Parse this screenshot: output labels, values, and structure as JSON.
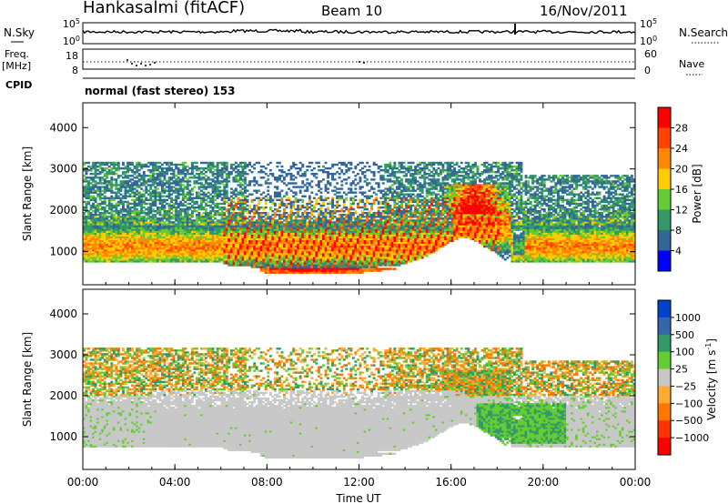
{
  "header": {
    "station": "Hankasalmi (fitACF)",
    "beam": "Beam 10",
    "date": "16/Nov/2011"
  },
  "noise_panel": {
    "left_label": "N.Sky",
    "right_label": "N.Search",
    "left_ticks": [
      {
        "base": "10",
        "exp": "5"
      },
      {
        "base": "10",
        "exp": "0"
      }
    ],
    "right_ticks": [
      {
        "base": "10",
        "exp": "5"
      },
      {
        "base": "10",
        "exp": "0"
      }
    ]
  },
  "freq_panel": {
    "left_label_line1": "Freq.",
    "left_label_line2": "[MHz]",
    "right_label": "Nave",
    "left_ticks": [
      "18",
      "8"
    ],
    "right_ticks": [
      "60",
      "0"
    ]
  },
  "cpid_panel": {
    "label": "CPID",
    "text": "normal (fast stereo) 153"
  },
  "chart_data": [
    {
      "type": "heatmap",
      "name": "power",
      "ylabel": "Slant Range [km]",
      "ylim": [
        200,
        4600
      ],
      "yticks": [
        1000,
        2000,
        3000,
        4000
      ],
      "xlim": [
        0,
        24
      ],
      "colorbar": {
        "label": "Power [dB]",
        "ticks": [
          "28",
          "24",
          "20",
          "16",
          "12",
          "8",
          "4"
        ],
        "colors": [
          "#ff0000",
          "#ff4400",
          "#ff8800",
          "#ffcc00",
          "#66cc33",
          "#339966",
          "#336699",
          "#0000ff"
        ]
      }
    },
    {
      "type": "heatmap",
      "name": "velocity",
      "ylabel": "Slant Range [km]",
      "ylim": [
        200,
        4600
      ],
      "yticks": [
        1000,
        2000,
        3000,
        4000
      ],
      "xlim": [
        0,
        24
      ],
      "xlabel": "Time UT",
      "xticks": [
        "00:00",
        "04:00",
        "08:00",
        "12:00",
        "16:00",
        "20:00",
        "00:00"
      ],
      "colorbar": {
        "label_main": "Velocity [m s",
        "label_sup": "-1",
        "label_end": "]",
        "ticks": [
          "1000",
          "500",
          "100",
          "25",
          "−25",
          "−100",
          "−500",
          "−1000"
        ],
        "colors": [
          "#0044cc",
          "#3366aa",
          "#339966",
          "#66cc33",
          "#c8c8c8",
          "#ffaa33",
          "#ff7700",
          "#ff3300",
          "#ff0000"
        ]
      }
    }
  ]
}
